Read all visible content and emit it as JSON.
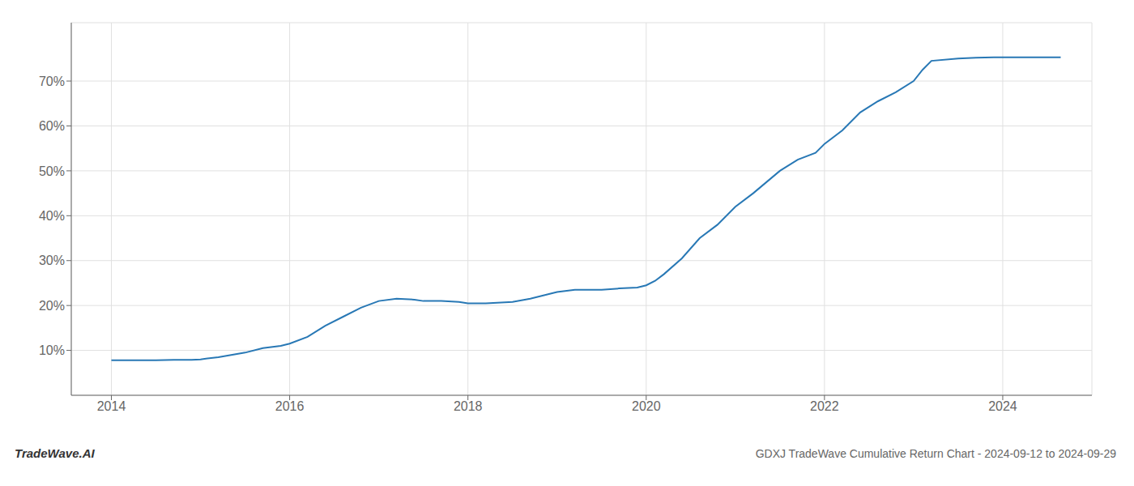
{
  "chart_data": {
    "type": "line",
    "title": "GDXJ TradeWave Cumulative Return Chart - 2024-09-12 to 2024-09-29",
    "annotations": [
      "TradeWave.AI"
    ],
    "x": [
      2014.0,
      2014.1,
      2014.2,
      2014.3,
      2014.5,
      2014.7,
      2014.9,
      2015.0,
      2015.2,
      2015.5,
      2015.7,
      2015.9,
      2016.0,
      2016.2,
      2016.4,
      2016.6,
      2016.8,
      2017.0,
      2017.2,
      2017.4,
      2017.5,
      2017.7,
      2017.9,
      2018.0,
      2018.2,
      2018.5,
      2018.7,
      2018.9,
      2019.0,
      2019.2,
      2019.5,
      2019.7,
      2019.9,
      2020.0,
      2020.1,
      2020.2,
      2020.4,
      2020.6,
      2020.8,
      2021.0,
      2021.2,
      2021.5,
      2021.7,
      2021.9,
      2022.0,
      2022.2,
      2022.4,
      2022.6,
      2022.8,
      2023.0,
      2023.1,
      2023.2,
      2023.5,
      2023.7,
      2023.9,
      2024.0,
      2024.3,
      2024.65
    ],
    "values": [
      7.8,
      7.8,
      7.8,
      7.8,
      7.8,
      7.9,
      7.9,
      8.0,
      8.5,
      9.5,
      10.5,
      11.0,
      11.5,
      13.0,
      15.5,
      17.5,
      19.5,
      21.0,
      21.5,
      21.3,
      21.0,
      21.0,
      20.8,
      20.5,
      20.5,
      20.8,
      21.5,
      22.5,
      23.0,
      23.5,
      23.5,
      23.8,
      24.0,
      24.5,
      25.5,
      27.0,
      30.5,
      35.0,
      38.0,
      42.0,
      45.0,
      50.0,
      52.5,
      54.0,
      56.0,
      59.0,
      63.0,
      65.5,
      67.5,
      70.0,
      72.5,
      74.5,
      75.0,
      75.2,
      75.3,
      75.3,
      75.3,
      75.3
    ],
    "color": "#2878b5",
    "xlim": [
      2013.55,
      2025.0
    ],
    "ylim": [
      0,
      83
    ],
    "xticks": [
      2014,
      2016,
      2018,
      2020,
      2022,
      2024
    ],
    "yticks": [
      {
        "value": 10,
        "label": "10%"
      },
      {
        "value": 20,
        "label": "20%"
      },
      {
        "value": 30,
        "label": "30%"
      },
      {
        "value": 40,
        "label": "40%"
      },
      {
        "value": 50,
        "label": "50%"
      },
      {
        "value": 60,
        "label": "60%"
      },
      {
        "value": 70,
        "label": "70%"
      }
    ],
    "grid": true
  }
}
